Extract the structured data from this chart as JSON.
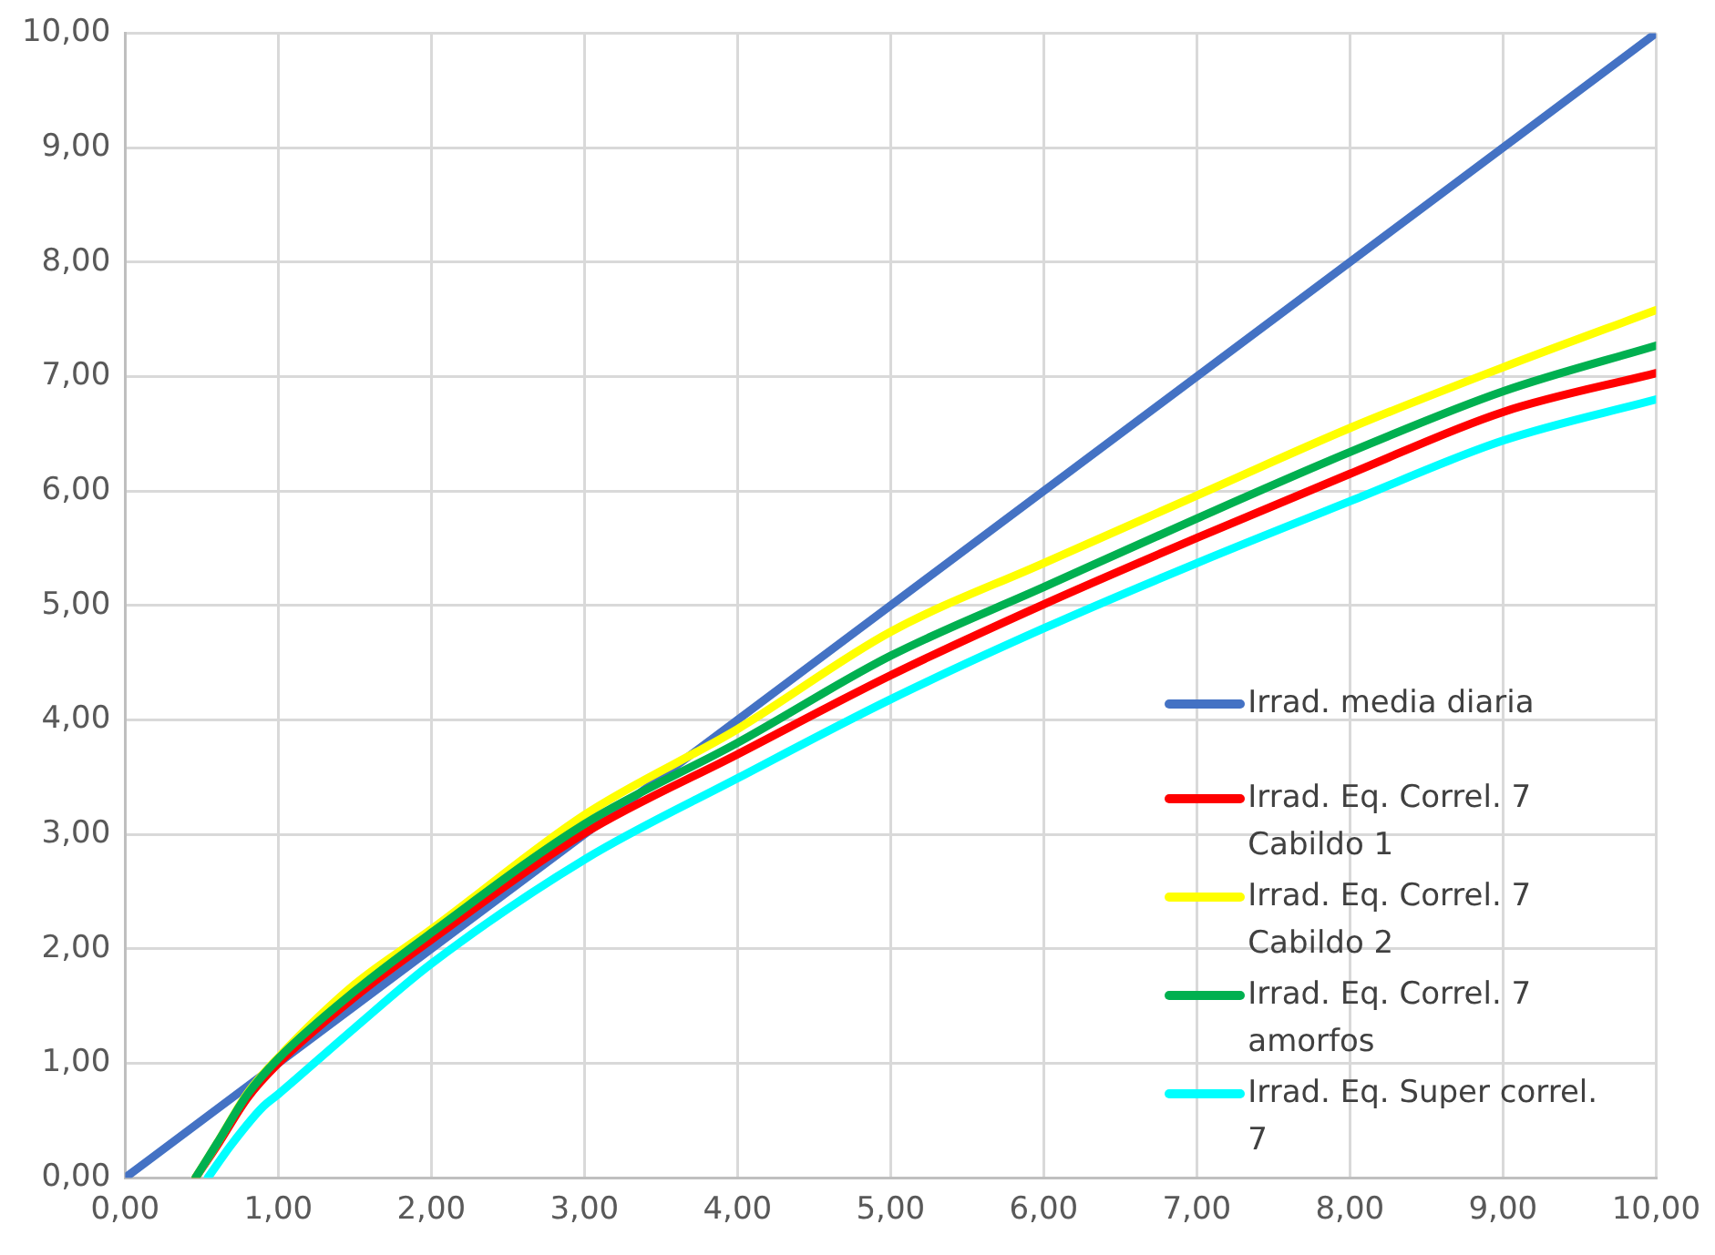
{
  "chart_data": {
    "type": "line",
    "xlim": [
      0,
      10
    ],
    "ylim": [
      0,
      10
    ],
    "xticks": [
      {
        "value": 0,
        "label": "0,00"
      },
      {
        "value": 1,
        "label": "1,00"
      },
      {
        "value": 2,
        "label": "2,00"
      },
      {
        "value": 3,
        "label": "3,00"
      },
      {
        "value": 4,
        "label": "4,00"
      },
      {
        "value": 5,
        "label": "5,00"
      },
      {
        "value": 6,
        "label": "6,00"
      },
      {
        "value": 7,
        "label": "7,00"
      },
      {
        "value": 8,
        "label": "8,00"
      },
      {
        "value": 9,
        "label": "9,00"
      },
      {
        "value": 10,
        "label": "10,00"
      }
    ],
    "yticks": [
      {
        "value": 0,
        "label": "0,00"
      },
      {
        "value": 1,
        "label": "1,00"
      },
      {
        "value": 2,
        "label": "2,00"
      },
      {
        "value": 3,
        "label": "3,00"
      },
      {
        "value": 4,
        "label": "4,00"
      },
      {
        "value": 5,
        "label": "5,00"
      },
      {
        "value": 6,
        "label": "6,00"
      },
      {
        "value": 7,
        "label": "7,00"
      },
      {
        "value": 8,
        "label": "8,00"
      },
      {
        "value": 9,
        "label": "9,00"
      },
      {
        "value": 10,
        "label": "10,00"
      }
    ],
    "grid": true,
    "legend": "bottom right",
    "marker": "none",
    "line_style": "solid",
    "series": [
      {
        "name": "Irrad. media diaria",
        "color": "#4472c4",
        "x": [
          0,
          10
        ],
        "values": [
          0,
          10
        ]
      },
      {
        "name": "Irrad. Eq. Correl. 7 Cabildo 1",
        "color": "#ff0000",
        "x": [
          0.46,
          0.6,
          0.8,
          1,
          1.5,
          2,
          3,
          4,
          5,
          6,
          7,
          8,
          9,
          10
        ],
        "values": [
          0,
          0.28,
          0.7,
          1.0,
          1.58,
          2.08,
          3.01,
          3.7,
          4.39,
          5.01,
          5.59,
          6.15,
          6.69,
          7.03
        ]
      },
      {
        "name": "Irrad. Eq. Correl. 7 Cabildo 2",
        "color": "#ffff00",
        "x": [
          0.46,
          0.6,
          0.8,
          1,
          1.5,
          2,
          3,
          4,
          5,
          6,
          7,
          8,
          9,
          10
        ],
        "values": [
          0,
          0.3,
          0.74,
          1.05,
          1.69,
          2.17,
          3.17,
          3.92,
          4.77,
          5.37,
          5.96,
          6.55,
          7.08,
          7.58
        ]
      },
      {
        "name": "Irrad. Eq. Correl. 7 amorfos",
        "color": "#00b050",
        "x": [
          0.46,
          0.6,
          0.8,
          1,
          1.5,
          2,
          3,
          4,
          5,
          6,
          7,
          8,
          9,
          10
        ],
        "values": [
          0,
          0.3,
          0.73,
          1.04,
          1.63,
          2.14,
          3.09,
          3.8,
          4.56,
          5.16,
          5.76,
          6.34,
          6.87,
          7.27
        ]
      },
      {
        "name": "Irrad. Eq. Super correl. 7",
        "color": "#00ffff",
        "x": [
          0.54,
          0.7,
          0.9,
          1,
          1.5,
          2,
          3,
          4,
          5,
          6,
          7,
          8,
          9,
          10
        ],
        "values": [
          0,
          0.3,
          0.62,
          0.73,
          1.31,
          1.87,
          2.78,
          3.49,
          4.18,
          4.8,
          5.37,
          5.91,
          6.44,
          6.8
        ]
      }
    ]
  }
}
